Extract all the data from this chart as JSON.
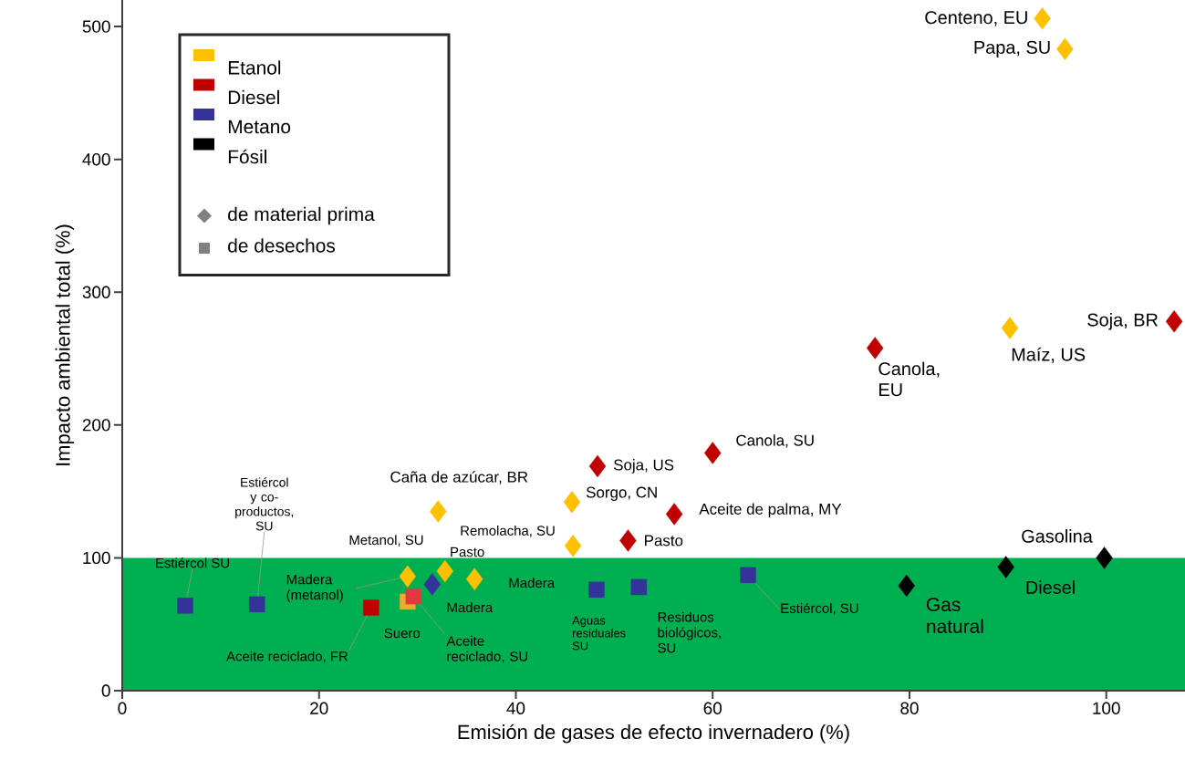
{
  "chart_data": {
    "type": "scatter",
    "xlabel": "Emisión de gases de efecto invernadero (%)",
    "ylabel": "Impacto ambiental total (%)",
    "xlim": [
      0,
      108
    ],
    "ylim": [
      0,
      520
    ],
    "xticks": [
      0,
      20,
      40,
      60,
      80,
      100
    ],
    "yticks": [
      0,
      100,
      200,
      300,
      400,
      500
    ],
    "legend": "top left",
    "bands": [
      {
        "axis": "y",
        "from": 0,
        "to": 100,
        "color": "#00b050"
      }
    ],
    "series": [
      {
        "name": "Etanol",
        "color": "#ffc000",
        "marker": "diamond",
        "x": [
          93.5,
          95.8,
          90.2,
          32.1,
          45.7,
          45.8,
          32.8,
          35.8,
          29.0
        ],
        "values": [
          506,
          483,
          273,
          135,
          142,
          109,
          90,
          84,
          86
        ]
      },
      {
        "color": "#f0a830",
        "marker": "square",
        "x": [
          29.0
        ],
        "values": [
          67
        ]
      },
      {
        "name": "Diesel",
        "color": "#c00000",
        "marker": "diamond",
        "x": [
          106.9,
          76.5,
          60.0,
          48.3,
          56.1,
          51.4
        ],
        "values": [
          278,
          258,
          179,
          169,
          133,
          113
        ]
      },
      {
        "colors": [
          "#c00000",
          "#e03a3e"
        ],
        "marker": "square",
        "x": [
          25.3,
          29.6
        ],
        "values": [
          62.5,
          71
        ]
      },
      {
        "name": "Metano",
        "color": "#333399",
        "marker": "square",
        "x": [
          6.4,
          13.7,
          48.2,
          52.5,
          63.6
        ],
        "values": [
          64,
          65,
          76,
          78,
          87
        ]
      },
      {
        "color": "#333399",
        "marker": "diamond",
        "x": [
          31.5
        ],
        "values": [
          80
        ]
      },
      {
        "name": "Fósil",
        "color": "#000000",
        "marker": "diamond",
        "x": [
          79.7,
          89.8,
          99.8
        ],
        "values": [
          79,
          93,
          100
        ]
      },
      {
        "name": "de material prima",
        "color": "#808080",
        "marker": "diamond"
      },
      {
        "name": "de desechos",
        "color": "#808080",
        "marker": "square"
      }
    ],
    "annotations": [
      {
        "text": "Centeno, EU",
        "x": 93.5,
        "y": 506
      },
      {
        "text": "Papa, SU",
        "x": 95.8,
        "y": 483
      },
      {
        "text": "Maíz, US",
        "x": 90.2,
        "y": 273
      },
      {
        "text": "Soja, BR",
        "x": 106.9,
        "y": 278
      },
      {
        "text": "Canola, EU",
        "x": 76.5,
        "y": 258
      },
      {
        "text": "Canola, SU",
        "x": 60.0,
        "y": 179
      },
      {
        "text": "Soja, US",
        "x": 48.3,
        "y": 169
      },
      {
        "text": "Aceite de palma, MY",
        "x": 56.1,
        "y": 133
      },
      {
        "text": "Pasto",
        "x": 51.4,
        "y": 113
      },
      {
        "text": "Sorgo, CN",
        "x": 45.7,
        "y": 142
      },
      {
        "text": "Caña de azúcar, BR",
        "x": 32.1,
        "y": 135
      },
      {
        "text": "Remolacha, SU",
        "x": 45.8,
        "y": 109
      },
      {
        "text": "Pasto",
        "x": 32.8,
        "y": 90
      },
      {
        "text": "Madera",
        "x": 35.8,
        "y": 84
      },
      {
        "text": "Madera",
        "x": 29.6,
        "y": 71
      },
      {
        "text": "Aceite reciclado, SU",
        "x": 29.6,
        "y": 71
      },
      {
        "text": "Suero",
        "x": 29.0,
        "y": 67
      },
      {
        "text": "Madera (metanol)",
        "x": 29.0,
        "y": 86
      },
      {
        "text": "Metanol, SU",
        "x": 31.5,
        "y": 80
      },
      {
        "text": "Estiércol SU",
        "x": 6.4,
        "y": 64
      },
      {
        "text": "Estiércol y co-productos, SU",
        "x": 13.7,
        "y": 65
      },
      {
        "text": "Aceite reciclado, FR",
        "x": 25.3,
        "y": 62.5
      },
      {
        "text": "Aguas residuales SU",
        "x": 48.2,
        "y": 76
      },
      {
        "text": "Residuos biológicos, SU",
        "x": 52.5,
        "y": 78
      },
      {
        "text": "Estiércol, SU",
        "x": 63.6,
        "y": 87
      },
      {
        "text": "Gas natural",
        "x": 79.7,
        "y": 79
      },
      {
        "text": "Diesel",
        "x": 89.8,
        "y": 93
      },
      {
        "text": "Gasolina",
        "x": 99.8,
        "y": 100
      }
    ]
  }
}
